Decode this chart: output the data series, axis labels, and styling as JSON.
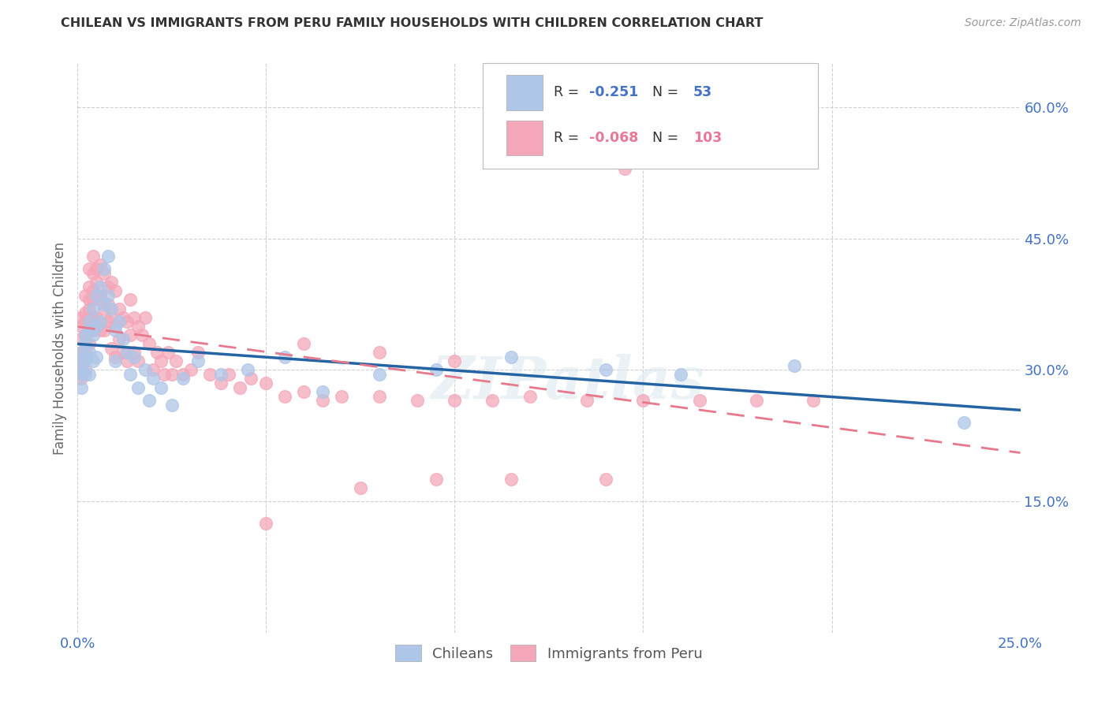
{
  "title": "CHILEAN VS IMMIGRANTS FROM PERU FAMILY HOUSEHOLDS WITH CHILDREN CORRELATION CHART",
  "source": "Source: ZipAtlas.com",
  "ylabel": "Family Households with Children",
  "xlim": [
    0.0,
    0.25
  ],
  "ylim": [
    0.0,
    0.65
  ],
  "chilean_R": -0.251,
  "chilean_N": 53,
  "peru_R": -0.068,
  "peru_N": 103,
  "chilean_color": "#aec6e8",
  "peru_color": "#f4a7b9",
  "chilean_line_color": "#2464a4",
  "peru_line_color": "#e8788c",
  "background_color": "#ffffff",
  "grid_color": "#cccccc",
  "watermark": "ZIPatlas",
  "title_color": "#333333",
  "source_color": "#999999",
  "tick_color": "#4472c4",
  "label_color": "#666666",
  "chilean_x": [
    0.001,
    0.001,
    0.001,
    0.001,
    0.001,
    0.002,
    0.002,
    0.002,
    0.002,
    0.002,
    0.003,
    0.003,
    0.003,
    0.003,
    0.004,
    0.004,
    0.004,
    0.005,
    0.005,
    0.005,
    0.006,
    0.006,
    0.007,
    0.007,
    0.008,
    0.008,
    0.009,
    0.01,
    0.01,
    0.011,
    0.012,
    0.013,
    0.014,
    0.015,
    0.016,
    0.018,
    0.019,
    0.02,
    0.022,
    0.025,
    0.028,
    0.032,
    0.038,
    0.045,
    0.055,
    0.065,
    0.08,
    0.095,
    0.115,
    0.14,
    0.16,
    0.19,
    0.235
  ],
  "chilean_y": [
    0.31,
    0.295,
    0.28,
    0.32,
    0.3,
    0.33,
    0.31,
    0.295,
    0.34,
    0.315,
    0.355,
    0.32,
    0.295,
    0.345,
    0.37,
    0.34,
    0.31,
    0.385,
    0.35,
    0.315,
    0.395,
    0.355,
    0.415,
    0.375,
    0.43,
    0.385,
    0.37,
    0.345,
    0.31,
    0.355,
    0.335,
    0.32,
    0.295,
    0.315,
    0.28,
    0.3,
    0.265,
    0.29,
    0.28,
    0.26,
    0.29,
    0.31,
    0.295,
    0.3,
    0.315,
    0.275,
    0.295,
    0.3,
    0.315,
    0.3,
    0.295,
    0.305,
    0.24
  ],
  "peru_x": [
    0.001,
    0.001,
    0.001,
    0.001,
    0.001,
    0.001,
    0.001,
    0.002,
    0.002,
    0.002,
    0.002,
    0.002,
    0.002,
    0.002,
    0.003,
    0.003,
    0.003,
    0.003,
    0.003,
    0.003,
    0.003,
    0.004,
    0.004,
    0.004,
    0.004,
    0.004,
    0.004,
    0.005,
    0.005,
    0.005,
    0.005,
    0.005,
    0.006,
    0.006,
    0.006,
    0.006,
    0.007,
    0.007,
    0.007,
    0.008,
    0.008,
    0.008,
    0.009,
    0.009,
    0.009,
    0.01,
    0.01,
    0.01,
    0.011,
    0.011,
    0.012,
    0.012,
    0.013,
    0.013,
    0.014,
    0.014,
    0.015,
    0.015,
    0.016,
    0.016,
    0.017,
    0.018,
    0.019,
    0.02,
    0.021,
    0.022,
    0.023,
    0.024,
    0.025,
    0.026,
    0.028,
    0.03,
    0.032,
    0.035,
    0.038,
    0.04,
    0.043,
    0.046,
    0.05,
    0.055,
    0.06,
    0.065,
    0.07,
    0.08,
    0.09,
    0.1,
    0.11,
    0.12,
    0.135,
    0.15,
    0.165,
    0.18,
    0.195,
    0.06,
    0.08,
    0.1,
    0.12,
    0.145,
    0.05,
    0.075,
    0.095,
    0.115,
    0.14
  ],
  "peru_y": [
    0.32,
    0.335,
    0.305,
    0.35,
    0.31,
    0.29,
    0.36,
    0.34,
    0.32,
    0.365,
    0.3,
    0.355,
    0.385,
    0.315,
    0.37,
    0.395,
    0.345,
    0.415,
    0.38,
    0.33,
    0.36,
    0.41,
    0.38,
    0.345,
    0.43,
    0.39,
    0.36,
    0.415,
    0.385,
    0.35,
    0.4,
    0.36,
    0.42,
    0.385,
    0.345,
    0.38,
    0.41,
    0.37,
    0.345,
    0.395,
    0.355,
    0.375,
    0.4,
    0.36,
    0.325,
    0.39,
    0.35,
    0.315,
    0.37,
    0.335,
    0.36,
    0.32,
    0.355,
    0.31,
    0.38,
    0.34,
    0.36,
    0.32,
    0.35,
    0.31,
    0.34,
    0.36,
    0.33,
    0.3,
    0.32,
    0.31,
    0.295,
    0.32,
    0.295,
    0.31,
    0.295,
    0.3,
    0.32,
    0.295,
    0.285,
    0.295,
    0.28,
    0.29,
    0.285,
    0.27,
    0.275,
    0.265,
    0.27,
    0.27,
    0.265,
    0.265,
    0.265,
    0.27,
    0.265,
    0.265,
    0.265,
    0.265,
    0.265,
    0.33,
    0.32,
    0.31,
    0.6,
    0.53,
    0.125,
    0.165,
    0.175,
    0.175,
    0.175
  ]
}
